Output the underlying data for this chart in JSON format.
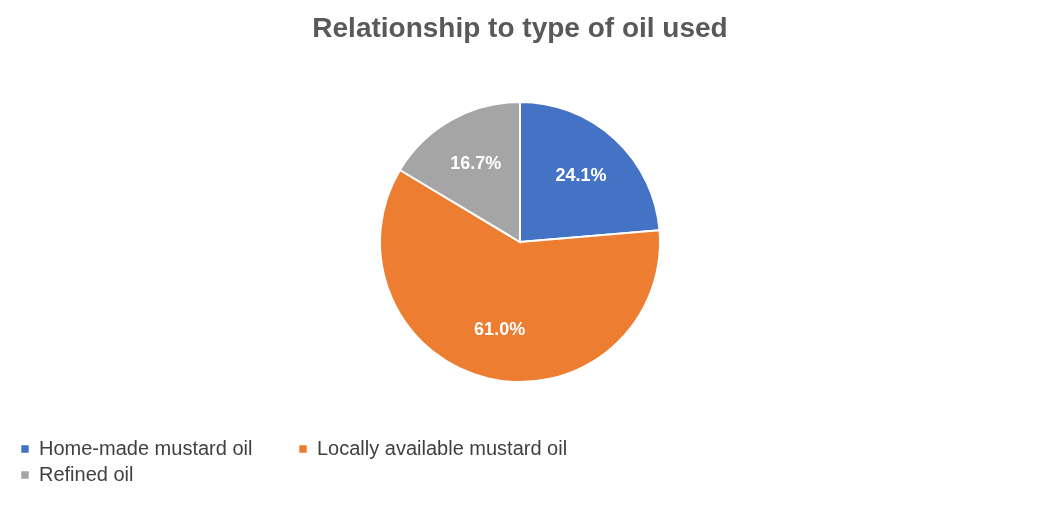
{
  "chart_data": {
    "type": "pie",
    "title": "Relationship to type of oil used",
    "categories": [
      "Home-made mustard oil",
      "Locally available mustard oil",
      "Refined oil"
    ],
    "values": [
      24.1,
      61.0,
      16.7
    ],
    "colors": [
      "#4472c4",
      "#ed7d31",
      "#a5a5a5"
    ],
    "value_labels": [
      "24.1%",
      "61.0%",
      "16.7%"
    ],
    "legend": "bottom"
  }
}
